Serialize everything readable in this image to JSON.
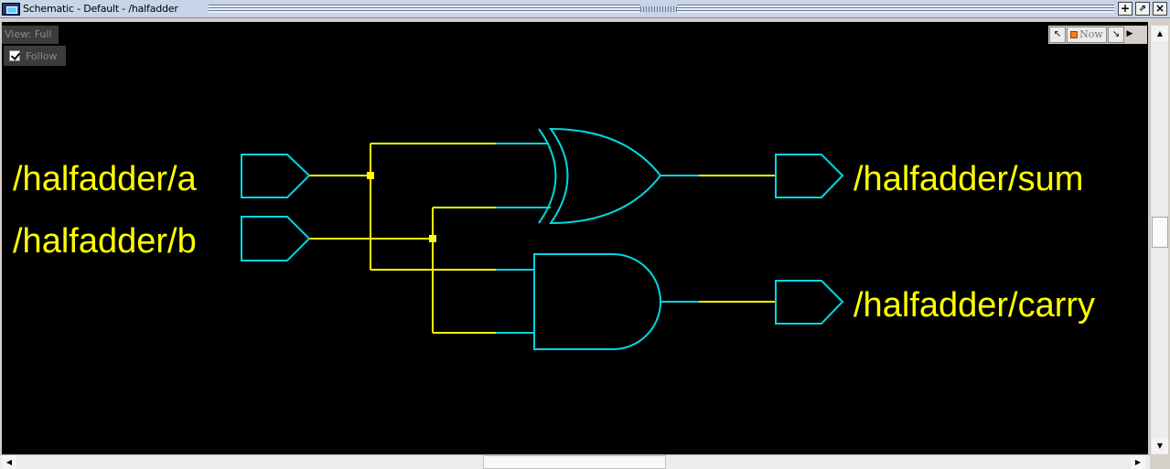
{
  "window": {
    "title": "Schematic - Default  - /halfadder",
    "buttons": {
      "add": "+",
      "undock": "⇗",
      "close": "×"
    }
  },
  "overlay": {
    "view_label": "View: Full",
    "follow_label": "Follow",
    "follow_checked": true
  },
  "toolbar": {
    "back_icon": "↖",
    "now_label": "Now",
    "forward_icon": "↘",
    "play_icon": "▶"
  },
  "schematic": {
    "inputs": [
      "/halfadder/a",
      "/halfadder/b"
    ],
    "outputs": [
      "/halfadder/sum",
      "/halfadder/carry"
    ],
    "gates": [
      "xor-gate",
      "and-gate"
    ],
    "colors": {
      "background": "#000000",
      "wire": "#ffff00",
      "component": "#00d8e0",
      "label": "#ffff00"
    }
  },
  "scroll": {
    "up_arrow": "▲",
    "down_arrow": "▼",
    "left_arrow": "◀",
    "right_arrow": "▶"
  }
}
